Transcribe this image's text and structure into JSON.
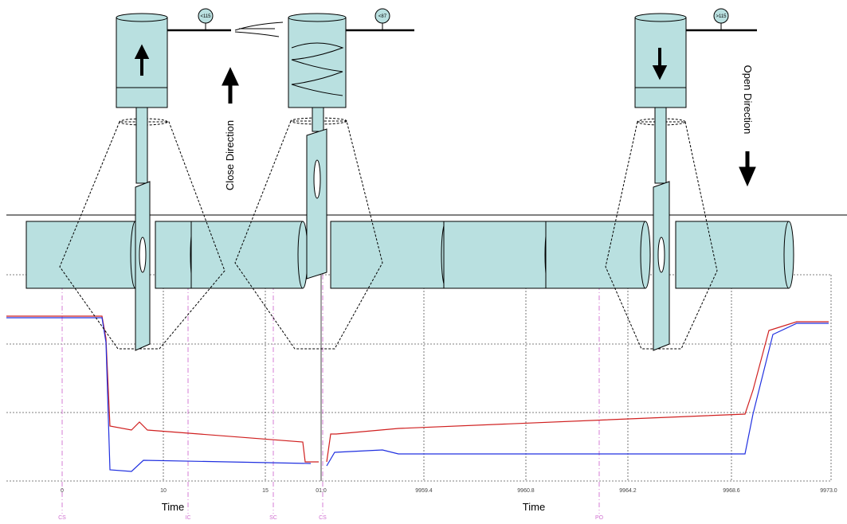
{
  "gauges": [
    "<115",
    "<87",
    ">115"
  ],
  "direction_labels": {
    "close": "Close Direction",
    "open": "Open Direction"
  },
  "left_panel": {
    "x_ticks": [
      "0",
      "10",
      "15"
    ],
    "x_label": "Time",
    "events": [
      "CS",
      "IC",
      "SC"
    ]
  },
  "right_panel": {
    "x_ticks": [
      "01.0",
      "9959.4",
      "9960.8",
      "9964.2",
      "9968.6",
      "9973.0"
    ],
    "x_label": "Time",
    "events": [
      "CS",
      "PO"
    ]
  }
}
